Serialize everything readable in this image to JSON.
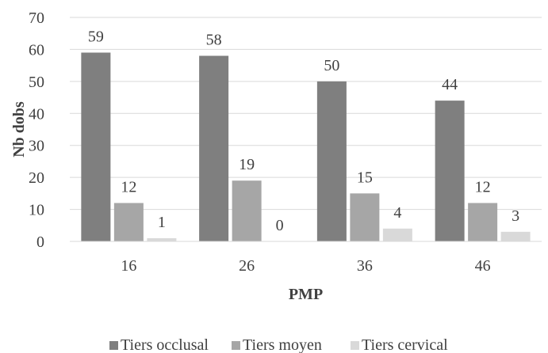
{
  "chart_data": {
    "type": "bar",
    "categories": [
      "16",
      "26",
      "36",
      "46"
    ],
    "series": [
      {
        "name": "Tiers occlusal",
        "values": [
          59,
          58,
          50,
          44
        ],
        "color": "#7f7f7f"
      },
      {
        "name": "Tiers moyen",
        "values": [
          12,
          19,
          15,
          12
        ],
        "color": "#a6a6a6"
      },
      {
        "name": "Tiers cervical",
        "values": [
          1,
          0,
          4,
          3
        ],
        "color": "#d9d9d9"
      }
    ],
    "xlabel": "PMP",
    "ylabel": "Nb dobs",
    "ylim": [
      0,
      70
    ],
    "yticks": [
      0,
      10,
      20,
      30,
      40,
      50,
      60,
      70
    ],
    "grid": true,
    "legend": "bottom",
    "data_labels": true
  }
}
